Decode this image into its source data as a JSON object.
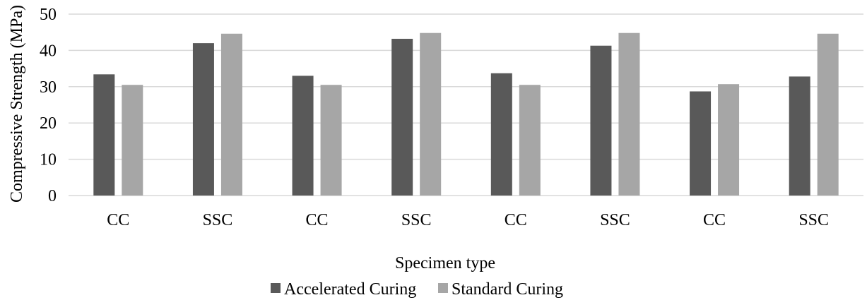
{
  "chart_data": {
    "type": "bar",
    "categories": [
      "CC",
      "SSC",
      "CC",
      "SSC",
      "CC",
      "SSC",
      "CC",
      "SSC"
    ],
    "series": [
      {
        "name": "Accelerated Curing",
        "color": "#595959",
        "values": [
          33.4,
          42.0,
          33.0,
          43.2,
          33.7,
          41.3,
          28.7,
          32.8
        ]
      },
      {
        "name": "Standard Curing",
        "color": "#a6a6a6",
        "values": [
          30.5,
          44.6,
          30.5,
          44.8,
          30.5,
          44.8,
          30.7,
          44.6
        ]
      }
    ],
    "xlabel": "Specimen type",
    "ylabel": "Compressive Strength (MPa)",
    "ylim": [
      0,
      50
    ],
    "yticks": [
      0,
      10,
      20,
      30,
      40,
      50
    ],
    "grid": true,
    "legend_position": "bottom"
  }
}
